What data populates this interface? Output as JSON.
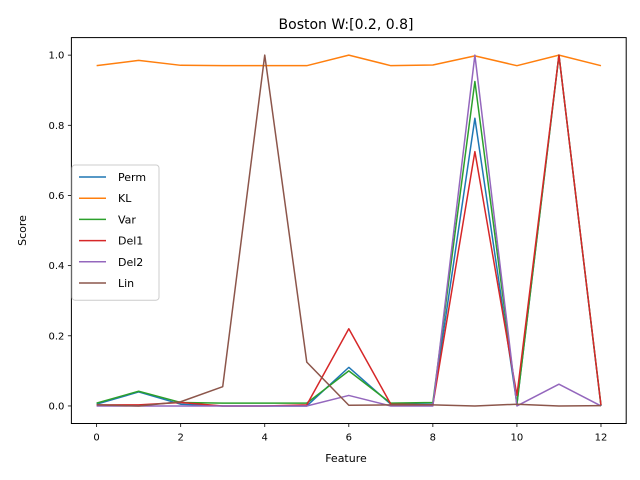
{
  "chart_data": {
    "type": "line",
    "title": "Boston W:[0.2, 0.8]",
    "xlabel": "Feature",
    "ylabel": "Score",
    "xlim": [
      -0.6,
      12.6
    ],
    "ylim": [
      -0.05,
      1.05
    ],
    "xticks": [
      0,
      2,
      4,
      6,
      8,
      10,
      12
    ],
    "yticks": [
      0.0,
      0.2,
      0.4,
      0.6,
      0.8,
      1.0
    ],
    "grid": false,
    "legend_position": "center-left",
    "x": [
      0,
      1,
      2,
      3,
      4,
      5,
      6,
      7,
      8,
      9,
      10,
      11,
      12
    ],
    "series": [
      {
        "name": "Perm",
        "color": "#1f77b4",
        "values": [
          0.005,
          0.04,
          0.005,
          0.0,
          0.0,
          0.0,
          0.11,
          0.005,
          0.005,
          0.82,
          0.005,
          1.0,
          0.0
        ]
      },
      {
        "name": "KL",
        "color": "#ff7f0e",
        "values": [
          0.97,
          0.985,
          0.971,
          0.97,
          0.97,
          0.97,
          1.0,
          0.97,
          0.972,
          0.998,
          0.97,
          1.0,
          0.97
        ]
      },
      {
        "name": "Var",
        "color": "#2ca02c",
        "values": [
          0.008,
          0.042,
          0.01,
          0.008,
          0.008,
          0.008,
          0.1,
          0.008,
          0.01,
          0.925,
          0.005,
          1.0,
          0.002
        ]
      },
      {
        "name": "Del1",
        "color": "#d62728",
        "values": [
          0.003,
          0.003,
          0.01,
          0.0,
          0.0,
          0.003,
          0.22,
          0.005,
          0.003,
          0.725,
          0.03,
          1.0,
          0.002
        ]
      },
      {
        "name": "Del2",
        "color": "#9467bd",
        "values": [
          0.0,
          0.0,
          0.0,
          0.0,
          0.0,
          0.0,
          0.03,
          0.0,
          0.0,
          1.0,
          0.0,
          0.062,
          0.0
        ]
      },
      {
        "name": "Lin",
        "color": "#8c564b",
        "values": [
          0.003,
          0.0,
          0.012,
          0.055,
          1.0,
          0.125,
          0.002,
          0.003,
          0.003,
          0.0,
          0.005,
          0.0,
          0.001
        ]
      }
    ]
  }
}
